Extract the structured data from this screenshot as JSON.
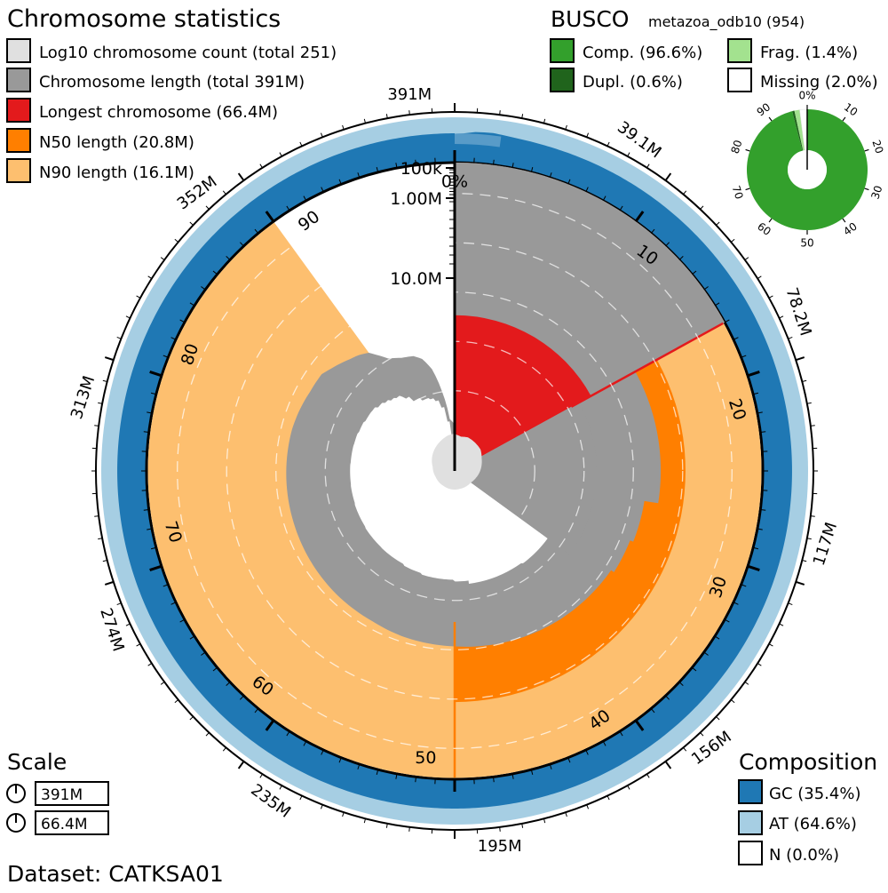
{
  "legend": {
    "title": "Chromosome statistics",
    "items": [
      {
        "label": "Log10 chromosome count (total 251)",
        "color": "#e0e0e0"
      },
      {
        "label": "Chromosome length (total 391M)",
        "color": "#999999"
      },
      {
        "label": "Longest chromosome (66.4M)",
        "color": "#e31a1c"
      },
      {
        "label": "N50 length (20.8M)",
        "color": "#ff7f00"
      },
      {
        "label": "N90 length (16.1M)",
        "color": "#fdbf6f"
      }
    ]
  },
  "busco": {
    "title": "BUSCO",
    "lineage": "metazoa_odb10 (954)",
    "items": [
      {
        "label": "Comp. (96.6%)",
        "color": "#33a02c"
      },
      {
        "label": "Frag. (1.4%)",
        "color": "#a3e28f"
      },
      {
        "label": "Dupl. (0.6%)",
        "color": "#20641c"
      },
      {
        "label": "Missing (2.0%)",
        "color": "#ffffff"
      }
    ],
    "ticks": [
      "0%",
      "10",
      "20",
      "30",
      "40",
      "50",
      "60",
      "70",
      "80",
      "90"
    ]
  },
  "composition": {
    "title": "Composition",
    "items": [
      {
        "label": "GC (35.4%)",
        "color": "#1f78b4"
      },
      {
        "label": "AT (64.6%)",
        "color": "#a6cee3"
      },
      {
        "label": "N (0.0%)",
        "color": "#ffffff"
      }
    ]
  },
  "scale": {
    "title": "Scale",
    "items": [
      "391M",
      "66.4M"
    ]
  },
  "dataset": "Dataset: CATKSA01",
  "chart_data": {
    "type": "radial-snail",
    "total_length_M": 391,
    "longest_M": 66.4,
    "n50_M": 20.8,
    "n90_M": 16.1,
    "chromosome_count": 251,
    "gc_percent": 35.4,
    "at_percent": 64.6,
    "n_percent": 0.0,
    "busco": {
      "complete": 96.6,
      "duplicated": 0.6,
      "fragmented": 1.4,
      "missing": 2.0
    },
    "outer_tick_labels": [
      "391M",
      "39.1M",
      "78.2M",
      "117M",
      "156M",
      "195M",
      "235M",
      "274M",
      "313M",
      "352M"
    ],
    "percent_tick_labels": [
      "0%",
      "10",
      "20",
      "30",
      "40",
      "50",
      "60",
      "70",
      "80",
      "90"
    ],
    "radial_tick_labels": [
      "100k",
      "1.00M",
      "10.0M"
    ],
    "radial_scale_max_M": 66.4,
    "length_percent_profile": [
      [
        0,
        66.4
      ],
      [
        17,
        66.4
      ],
      [
        17,
        29.7
      ],
      [
        27.5,
        29.7
      ],
      [
        27.5,
        25.8
      ],
      [
        31,
        25.8
      ],
      [
        31,
        24.9
      ],
      [
        34,
        24.9
      ],
      [
        34,
        24.0
      ],
      [
        40,
        23.2
      ],
      [
        46,
        22.2
      ],
      [
        50,
        21.5
      ],
      [
        55,
        21.0
      ],
      [
        58,
        20.5
      ],
      [
        62,
        20.4
      ],
      [
        66,
        20.2
      ],
      [
        70,
        20.0
      ],
      [
        73,
        19.9
      ],
      [
        76,
        19.8
      ],
      [
        79,
        19.7
      ],
      [
        81,
        19.4
      ],
      [
        83,
        19.0
      ],
      [
        85,
        18.9
      ],
      [
        86,
        18.0
      ],
      [
        87,
        17.2
      ],
      [
        88,
        16.4
      ],
      [
        89,
        15.8
      ],
      [
        90,
        14.9
      ],
      [
        90.5,
        13.8
      ],
      [
        91.5,
        11.9
      ],
      [
        93,
        10.9
      ],
      [
        94.5,
        10.4
      ],
      [
        95.5,
        9.5
      ],
      [
        96.5,
        7.6
      ],
      [
        97.5,
        4.5
      ],
      [
        98.5,
        1.9
      ],
      [
        100,
        1.5
      ]
    ],
    "count_profile_percent": [
      [
        0,
        1.5
      ],
      [
        1,
        1.45
      ],
      [
        3,
        1.4
      ],
      [
        6,
        1.45
      ],
      [
        10,
        1.4
      ],
      [
        14,
        1.35
      ],
      [
        18,
        1.2
      ],
      [
        22,
        1.1
      ],
      [
        26,
        1.0
      ],
      [
        30,
        0.9
      ],
      [
        35,
        0.8
      ],
      [
        45,
        0.75
      ],
      [
        60,
        0.75
      ],
      [
        70,
        0.8
      ],
      [
        78,
        0.9
      ],
      [
        85,
        1.1
      ],
      [
        92,
        1.3
      ],
      [
        97,
        1.45
      ],
      [
        100,
        1.5
      ]
    ],
    "gc_profile_percent": [
      [
        0,
        0.94
      ],
      [
        0.4,
        0.95
      ],
      [
        1,
        0.99
      ],
      [
        1.8,
        1.0
      ],
      [
        2.4,
        0.98
      ],
      [
        3,
        0.965
      ],
      [
        4,
        0.955
      ],
      [
        5,
        0.951
      ],
      [
        7,
        0.95
      ],
      [
        10,
        0.95
      ],
      [
        100,
        0.95
      ]
    ]
  }
}
